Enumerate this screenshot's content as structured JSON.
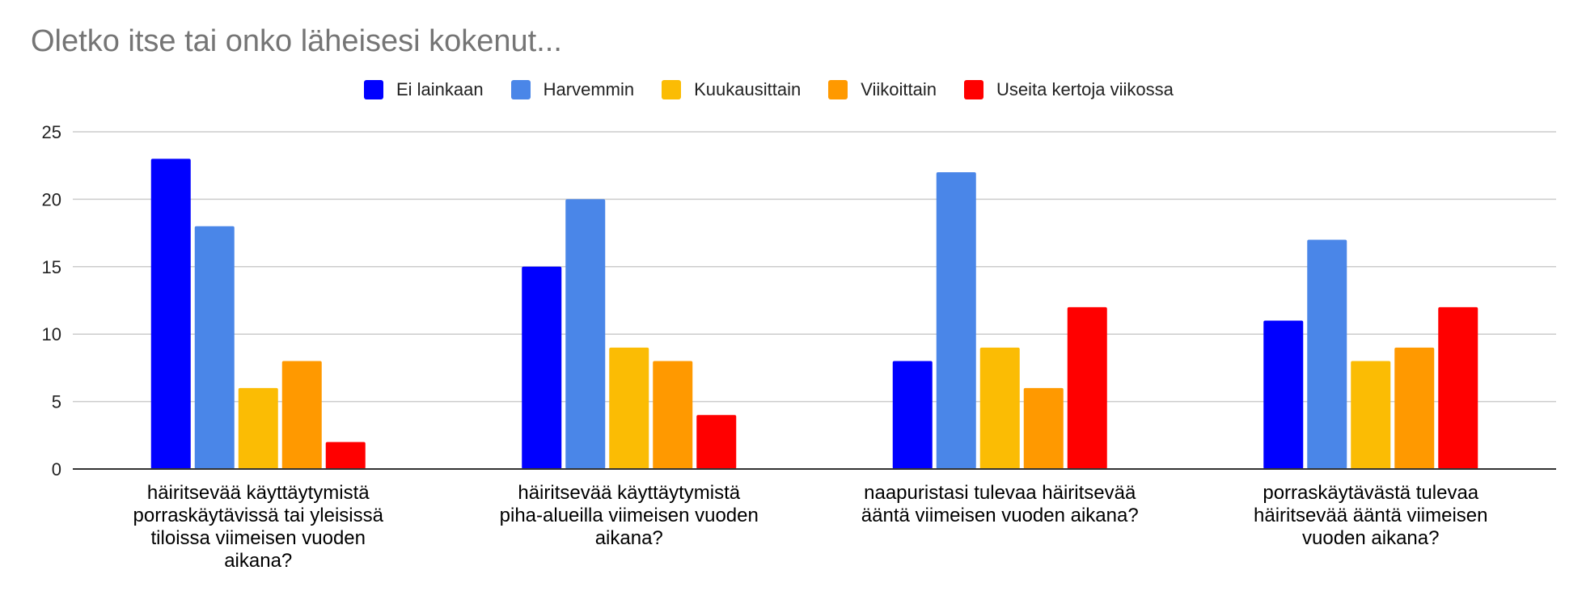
{
  "chart_data": {
    "type": "bar",
    "title": "Oletko itse tai onko läheisesi kokenut...",
    "categories": [
      "häiritsevää käyttäytymistä porraskäytävissä tai yleisissä tiloissa viimeisen vuoden aikana?",
      "häiritsevää käyttäytymistä piha-alueilla viimeisen vuoden aikana?",
      "naapuristasi tulevaa häiritsevää ääntä viimeisen vuoden aikana?",
      "porraskäytävästä tulevaa häiritsevää ääntä viimeisen vuoden aikana?"
    ],
    "category_lines": [
      [
        "häiritsevää käyttäytymistä",
        "porraskäytävissä tai yleisissä",
        "tiloissa viimeisen vuoden",
        "aikana?"
      ],
      [
        "häiritsevää käyttäytymistä",
        "piha-alueilla viimeisen vuoden",
        "aikana?"
      ],
      [
        "naapuristasi tulevaa häiritsevää",
        "ääntä viimeisen vuoden aikana?"
      ],
      [
        "porraskäytävästä tulevaa",
        "häiritsevää ääntä viimeisen",
        "vuoden aikana?"
      ]
    ],
    "series": [
      {
        "name": "Ei lainkaan",
        "color": "#0000ff",
        "values": [
          23,
          15,
          8,
          11
        ]
      },
      {
        "name": "Harvemmin",
        "color": "#4a86e8",
        "values": [
          18,
          20,
          22,
          17
        ]
      },
      {
        "name": "Kuukausittain",
        "color": "#fbbc04",
        "values": [
          6,
          9,
          9,
          8
        ]
      },
      {
        "name": "Viikoittain",
        "color": "#ff9900",
        "values": [
          8,
          8,
          6,
          9
        ]
      },
      {
        "name": "Useita kertoja viikossa",
        "color": "#ff0000",
        "values": [
          2,
          4,
          12,
          12
        ]
      }
    ],
    "ylim": [
      0,
      25
    ],
    "yticks": [
      0,
      5,
      10,
      15,
      20,
      25
    ],
    "grid": true,
    "legend_position": "top-center"
  }
}
